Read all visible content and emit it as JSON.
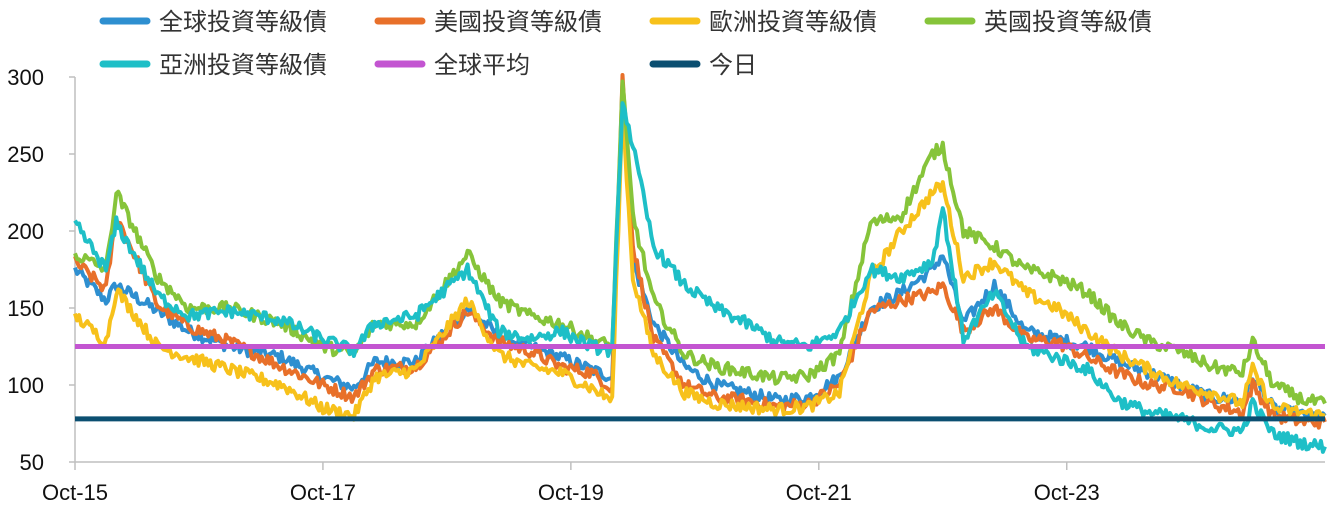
{
  "chart_data": {
    "type": "line",
    "title": "",
    "xlabel": "",
    "ylabel": "",
    "ylim": [
      50,
      300
    ],
    "y_ticks": [
      50,
      100,
      150,
      200,
      250,
      300
    ],
    "x_tick_labels": [
      "Oct-15",
      "Oct-17",
      "Oct-19",
      "Oct-21",
      "Oct-23"
    ],
    "x_tick_dates": [
      "2015-10",
      "2017-10",
      "2019-10",
      "2021-10",
      "2023-10"
    ],
    "xlim": [
      "2015-10",
      "2025-11"
    ],
    "grid": false,
    "legend_position": "top",
    "series": [
      {
        "name": "全球投資等級債",
        "color": "#2E8FD0",
        "x": [
          "2015-10",
          "2016-01",
          "2016-02",
          "2016-06",
          "2016-09",
          "2017-01",
          "2017-06",
          "2017-10",
          "2018-01",
          "2018-03",
          "2018-07",
          "2018-12",
          "2019-03",
          "2019-06",
          "2019-09",
          "2019-12",
          "2020-02",
          "2020-03",
          "2020-04",
          "2020-06",
          "2020-09",
          "2020-12",
          "2021-03",
          "2021-06",
          "2021-09",
          "2021-12",
          "2022-03",
          "2022-06",
          "2022-09",
          "2022-10",
          "2022-12",
          "2023-03",
          "2023-06",
          "2023-09",
          "2023-12",
          "2024-03",
          "2024-06",
          "2024-09",
          "2024-12",
          "2025-03",
          "2025-04",
          "2025-06",
          "2025-09",
          "2025-11"
        ],
        "y": [
          175,
          155,
          165,
          148,
          135,
          125,
          118,
          105,
          98,
          115,
          115,
          150,
          132,
          125,
          118,
          110,
          105,
          290,
          180,
          140,
          112,
          100,
          95,
          90,
          92,
          105,
          150,
          160,
          175,
          185,
          140,
          165,
          135,
          130,
          125,
          115,
          108,
          100,
          92,
          90,
          105,
          85,
          80,
          80
        ]
      },
      {
        "name": "美國投資等級債",
        "color": "#E8702A",
        "x": [
          "2015-10",
          "2016-01",
          "2016-02",
          "2016-06",
          "2016-09",
          "2017-01",
          "2017-06",
          "2017-10",
          "2018-01",
          "2018-03",
          "2018-07",
          "2018-12",
          "2019-03",
          "2019-06",
          "2019-09",
          "2019-12",
          "2020-02",
          "2020-03",
          "2020-04",
          "2020-06",
          "2020-09",
          "2020-12",
          "2021-03",
          "2021-06",
          "2021-09",
          "2021-12",
          "2022-03",
          "2022-06",
          "2022-09",
          "2022-10",
          "2022-12",
          "2023-03",
          "2023-06",
          "2023-09",
          "2023-12",
          "2024-03",
          "2024-06",
          "2024-09",
          "2024-12",
          "2025-03",
          "2025-04",
          "2025-06",
          "2025-09",
          "2025-11"
        ],
        "y": [
          180,
          162,
          210,
          152,
          138,
          128,
          112,
          100,
          92,
          110,
          112,
          148,
          128,
          122,
          112,
          108,
          98,
          300,
          190,
          130,
          100,
          92,
          90,
          86,
          88,
          100,
          148,
          155,
          160,
          165,
          135,
          150,
          130,
          128,
          118,
          108,
          100,
          98,
          88,
          82,
          100,
          80,
          76,
          76
        ]
      },
      {
        "name": "歐洲投資等級債",
        "color": "#F7C11B",
        "x": [
          "2015-10",
          "2016-01",
          "2016-02",
          "2016-06",
          "2016-09",
          "2017-01",
          "2017-06",
          "2017-10",
          "2018-01",
          "2018-03",
          "2018-07",
          "2018-12",
          "2019-03",
          "2019-06",
          "2019-09",
          "2019-12",
          "2020-02",
          "2020-03",
          "2020-04",
          "2020-06",
          "2020-09",
          "2020-12",
          "2021-03",
          "2021-06",
          "2021-09",
          "2021-12",
          "2022-03",
          "2022-06",
          "2022-09",
          "2022-10",
          "2022-12",
          "2023-03",
          "2023-06",
          "2023-09",
          "2023-12",
          "2024-03",
          "2024-06",
          "2024-09",
          "2024-12",
          "2025-03",
          "2025-04",
          "2025-06",
          "2025-09",
          "2025-11"
        ],
        "y": [
          145,
          128,
          162,
          125,
          118,
          110,
          100,
          85,
          80,
          105,
          110,
          155,
          120,
          112,
          108,
          98,
          90,
          280,
          170,
          120,
          95,
          88,
          86,
          84,
          86,
          95,
          170,
          200,
          225,
          230,
          170,
          180,
          160,
          150,
          135,
          120,
          110,
          100,
          95,
          88,
          110,
          85,
          82,
          80
        ]
      },
      {
        "name": "英國投資等級債",
        "color": "#86C43A",
        "x": [
          "2015-10",
          "2016-01",
          "2016-02",
          "2016-06",
          "2016-09",
          "2017-01",
          "2017-06",
          "2017-10",
          "2018-01",
          "2018-03",
          "2018-07",
          "2018-12",
          "2019-03",
          "2019-06",
          "2019-09",
          "2019-12",
          "2020-02",
          "2020-03",
          "2020-04",
          "2020-06",
          "2020-09",
          "2020-12",
          "2021-03",
          "2021-06",
          "2021-09",
          "2021-12",
          "2022-03",
          "2022-06",
          "2022-09",
          "2022-10",
          "2022-12",
          "2023-03",
          "2023-06",
          "2023-09",
          "2023-12",
          "2024-03",
          "2024-06",
          "2024-09",
          "2024-12",
          "2025-03",
          "2025-04",
          "2025-06",
          "2025-09",
          "2025-11"
        ],
        "y": [
          185,
          175,
          225,
          170,
          150,
          150,
          140,
          125,
          120,
          140,
          140,
          185,
          155,
          145,
          140,
          130,
          125,
          295,
          210,
          155,
          120,
          112,
          108,
          104,
          106,
          120,
          205,
          210,
          250,
          255,
          200,
          190,
          175,
          170,
          160,
          140,
          128,
          122,
          112,
          108,
          128,
          100,
          90,
          88
        ]
      },
      {
        "name": "亞洲投資等級債",
        "color": "#1EBFC7",
        "x": [
          "2015-10",
          "2016-01",
          "2016-02",
          "2016-06",
          "2016-09",
          "2017-01",
          "2017-06",
          "2017-10",
          "2018-01",
          "2018-03",
          "2018-07",
          "2018-12",
          "2019-03",
          "2019-06",
          "2019-09",
          "2019-12",
          "2020-02",
          "2020-03",
          "2020-04",
          "2020-06",
          "2020-09",
          "2020-12",
          "2021-03",
          "2021-06",
          "2021-09",
          "2021-12",
          "2022-03",
          "2022-06",
          "2022-09",
          "2022-10",
          "2022-12",
          "2023-03",
          "2023-06",
          "2023-09",
          "2023-12",
          "2024-03",
          "2024-06",
          "2024-09",
          "2024-12",
          "2025-03",
          "2025-04",
          "2025-06",
          "2025-09",
          "2025-11"
        ],
        "y": [
          205,
          175,
          205,
          158,
          145,
          148,
          142,
          130,
          122,
          140,
          145,
          175,
          135,
          130,
          135,
          125,
          122,
          285,
          255,
          190,
          165,
          150,
          140,
          128,
          125,
          135,
          175,
          170,
          180,
          215,
          130,
          160,
          125,
          118,
          110,
          90,
          82,
          78,
          72,
          70,
          88,
          68,
          62,
          60
        ]
      },
      {
        "name": "全球平均",
        "color": "#C355D1",
        "x": [
          "2015-10",
          "2025-11"
        ],
        "y": [
          125,
          125
        ]
      },
      {
        "name": "今日",
        "color": "#0B4F71",
        "x": [
          "2015-10",
          "2025-11"
        ],
        "y": [
          78,
          78
        ]
      }
    ]
  }
}
